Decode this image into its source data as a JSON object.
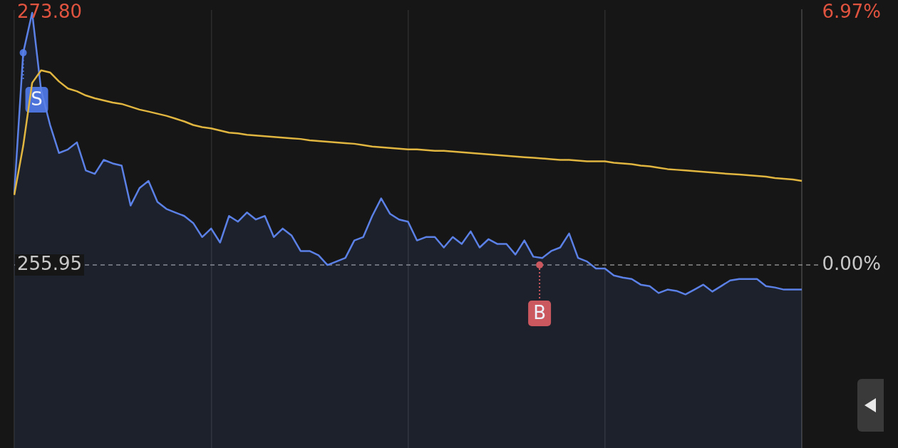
{
  "chart_data": {
    "type": "line",
    "categories": [
      null,
      null,
      null,
      null,
      null,
      null,
      null,
      null,
      null,
      null,
      null,
      null,
      null,
      null,
      null,
      null,
      null,
      null,
      null,
      null,
      null,
      null,
      null,
      null,
      null,
      null,
      null,
      null,
      null,
      null,
      null,
      null,
      null,
      null,
      null,
      null,
      null,
      null,
      null,
      null,
      null,
      null,
      null,
      null,
      null,
      null,
      null,
      null,
      null,
      null,
      null,
      null,
      null,
      null,
      null,
      null,
      null,
      null,
      null,
      null,
      null,
      null,
      null,
      null,
      null,
      null,
      null,
      null,
      null,
      null,
      null,
      null,
      null,
      null,
      null,
      null,
      null,
      null,
      null,
      null,
      null,
      null,
      null,
      null,
      null,
      null,
      null,
      null,
      null
    ],
    "series": [
      {
        "type": "area",
        "color": "#5b80e6",
        "values": [
          261.01,
          270.97,
          273.8,
          268.34,
          265.87,
          263.88,
          264.13,
          264.63,
          262.64,
          262.4,
          263.39,
          263.14,
          262.99,
          260.16,
          261.4,
          261.9,
          260.41,
          259.92,
          259.67,
          259.42,
          258.92,
          257.93,
          258.53,
          257.54,
          259.42,
          259.02,
          259.67,
          259.17,
          259.42,
          257.93,
          258.53,
          258.03,
          256.94,
          256.94,
          256.64,
          255.95,
          256.2,
          256.45,
          257.69,
          257.93,
          259.42,
          260.66,
          259.57,
          259.17,
          259.02,
          257.69,
          257.93,
          257.93,
          257.19,
          257.93,
          257.44,
          258.33,
          257.19,
          257.78,
          257.44,
          257.44,
          256.69,
          257.69,
          256.54,
          256.45,
          256.94,
          257.19,
          258.18,
          256.45,
          256.2,
          255.7,
          255.7,
          255.21,
          255.06,
          254.96,
          254.56,
          254.46,
          253.97,
          254.21,
          254.12,
          253.87,
          254.21,
          254.56,
          254.07,
          254.46,
          254.86,
          254.96,
          254.96,
          254.96,
          254.46,
          254.36,
          254.21,
          254.21,
          254.21
        ]
      },
      {
        "color": "#e0b540",
        "values": [
          260.91,
          264.38,
          268.84,
          269.73,
          269.58,
          268.94,
          268.44,
          268.25,
          267.95,
          267.75,
          267.6,
          267.45,
          267.35,
          267.15,
          266.95,
          266.81,
          266.66,
          266.51,
          266.31,
          266.11,
          265.86,
          265.71,
          265.62,
          265.47,
          265.32,
          265.27,
          265.17,
          265.12,
          265.07,
          265.02,
          264.97,
          264.92,
          264.87,
          264.78,
          264.73,
          264.68,
          264.63,
          264.58,
          264.53,
          264.43,
          264.33,
          264.28,
          264.23,
          264.18,
          264.13,
          264.13,
          264.08,
          264.03,
          264.03,
          263.98,
          263.93,
          263.88,
          263.83,
          263.78,
          263.73,
          263.68,
          263.63,
          263.58,
          263.54,
          263.49,
          263.44,
          263.39,
          263.39,
          263.34,
          263.29,
          263.29,
          263.29,
          263.19,
          263.14,
          263.09,
          262.99,
          262.94,
          262.84,
          262.74,
          262.69,
          262.64,
          262.59,
          262.54,
          262.49,
          262.44,
          262.39,
          262.35,
          262.3,
          262.25,
          262.2,
          262.1,
          262.05,
          262.0,
          261.9
        ]
      }
    ],
    "ylim": [
      243.0,
      274.0
    ],
    "yticks": [
      {
        "value": 255.95,
        "label": "255.95"
      },
      {
        "value": 273.8,
        "label": "273.80"
      }
    ],
    "y2lim": [
      -5.06,
      7.05
    ],
    "y2ticks": [
      {
        "value": 0,
        "label": "0.00%"
      },
      {
        "value": 6.97,
        "label": "6.97%"
      }
    ],
    "ref_lines": [
      {
        "axis": "y",
        "value": 255.95,
        "line_style": "dashed",
        "color": "#8a8a8a"
      }
    ],
    "annotations": [
      "S",
      "B"
    ],
    "grid": "x",
    "marker": "none"
  }
}
